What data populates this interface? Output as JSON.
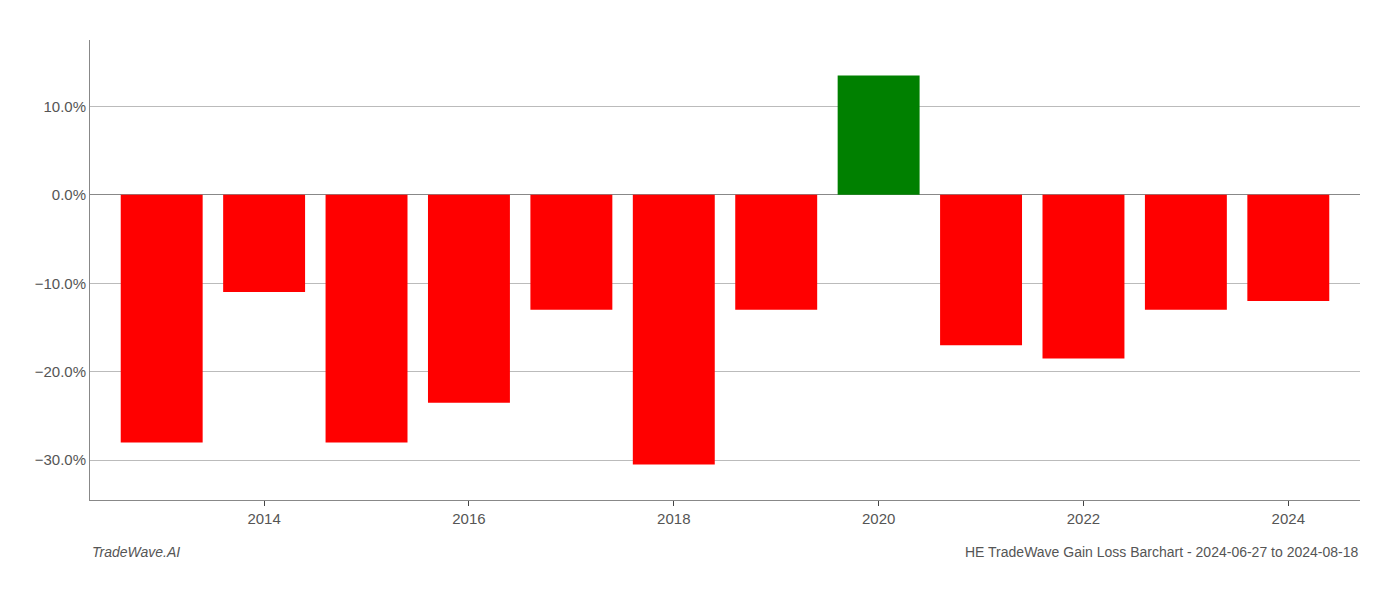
{
  "chart_data": {
    "type": "bar",
    "x": [
      2013,
      2014,
      2015,
      2016,
      2017,
      2018,
      2019,
      2020,
      2021,
      2022,
      2023,
      2024
    ],
    "values": [
      -0.28,
      -0.11,
      -0.28,
      -0.235,
      -0.13,
      -0.305,
      -0.13,
      0.135,
      -0.17,
      -0.185,
      -0.13,
      -0.12
    ],
    "colors": [
      "red",
      "red",
      "red",
      "red",
      "red",
      "red",
      "red",
      "green",
      "red",
      "red",
      "red",
      "red"
    ],
    "xlim": [
      2012.3,
      2024.7
    ],
    "xticks": [
      2014,
      2016,
      2018,
      2020,
      2022,
      2024
    ],
    "ylim": [
      -0.345,
      0.175
    ],
    "yticks": [
      {
        "value": -0.3,
        "label": "−30.0%"
      },
      {
        "value": -0.2,
        "label": "−20.0%"
      },
      {
        "value": -0.1,
        "label": "−10.0%"
      },
      {
        "value": 0.0,
        "label": "0.0%"
      },
      {
        "value": 0.1,
        "label": "10.0%"
      }
    ],
    "grid": true,
    "annotations": [
      "TradeWave.AI",
      "HE TradeWave Gain Loss Barchart - 2024-06-27 to 2024-08-18"
    ]
  }
}
